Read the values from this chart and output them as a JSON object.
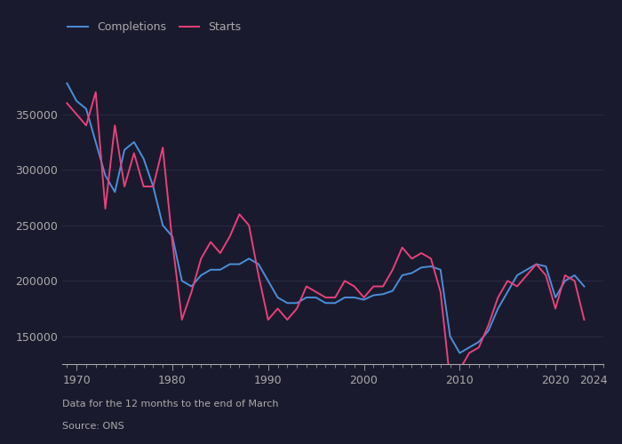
{
  "completions_years": [
    1969,
    1970,
    1971,
    1972,
    1973,
    1974,
    1975,
    1976,
    1977,
    1978,
    1979,
    1980,
    1981,
    1982,
    1983,
    1984,
    1985,
    1986,
    1987,
    1988,
    1989,
    1990,
    1991,
    1992,
    1993,
    1994,
    1995,
    1996,
    1997,
    1998,
    1999,
    2000,
    2001,
    2002,
    2003,
    2004,
    2005,
    2006,
    2007,
    2008,
    2009,
    2010,
    2011,
    2012,
    2013,
    2014,
    2015,
    2016,
    2017,
    2018,
    2019,
    2020,
    2021,
    2022,
    2023
  ],
  "completions_values": [
    378000,
    362000,
    355000,
    325000,
    295000,
    280000,
    318000,
    325000,
    310000,
    285000,
    250000,
    240000,
    200000,
    195000,
    205000,
    210000,
    210000,
    215000,
    215000,
    220000,
    215000,
    200000,
    185000,
    180000,
    180000,
    185000,
    185000,
    180000,
    180000,
    185000,
    185000,
    183000,
    187000,
    188000,
    191000,
    205000,
    207000,
    212000,
    213000,
    210000,
    150000,
    135000,
    140000,
    145000,
    155000,
    175000,
    190000,
    205000,
    210000,
    215000,
    213000,
    185000,
    200000,
    205000,
    195000
  ],
  "starts_years": [
    1969,
    1970,
    1971,
    1972,
    1973,
    1974,
    1975,
    1976,
    1977,
    1978,
    1979,
    1980,
    1981,
    1982,
    1983,
    1984,
    1985,
    1986,
    1987,
    1988,
    1989,
    1990,
    1991,
    1992,
    1993,
    1994,
    1995,
    1996,
    1997,
    1998,
    1999,
    2000,
    2001,
    2002,
    2003,
    2004,
    2005,
    2006,
    2007,
    2008,
    2009,
    2010,
    2011,
    2012,
    2013,
    2014,
    2015,
    2016,
    2017,
    2018,
    2019,
    2020,
    2021,
    2022,
    2023
  ],
  "starts_values": [
    360000,
    350000,
    340000,
    370000,
    265000,
    340000,
    285000,
    315000,
    285000,
    285000,
    320000,
    235000,
    165000,
    190000,
    220000,
    235000,
    225000,
    240000,
    260000,
    250000,
    205000,
    165000,
    175000,
    165000,
    175000,
    195000,
    190000,
    185000,
    185000,
    200000,
    195000,
    185000,
    195000,
    195000,
    210000,
    230000,
    220000,
    225000,
    220000,
    190000,
    110000,
    120000,
    135000,
    140000,
    160000,
    185000,
    200000,
    195000,
    205000,
    215000,
    205000,
    175000,
    205000,
    200000,
    165000
  ],
  "completions_color": "#4a90d9",
  "starts_color": "#e8417a",
  "bg_color": "#1a1a2e",
  "text_color": "#aaaaaa",
  "grid_color": "#2a2a45",
  "yticks": [
    150000,
    200000,
    250000,
    300000,
    350000
  ],
  "xticks": [
    1970,
    1980,
    1990,
    2000,
    2010,
    2020,
    2024
  ],
  "footnote1": "Data for the 12 months to the end of March",
  "footnote2": "Source: ONS",
  "ylim": [
    125000,
    405000
  ],
  "xlim": [
    1968.5,
    2025
  ]
}
